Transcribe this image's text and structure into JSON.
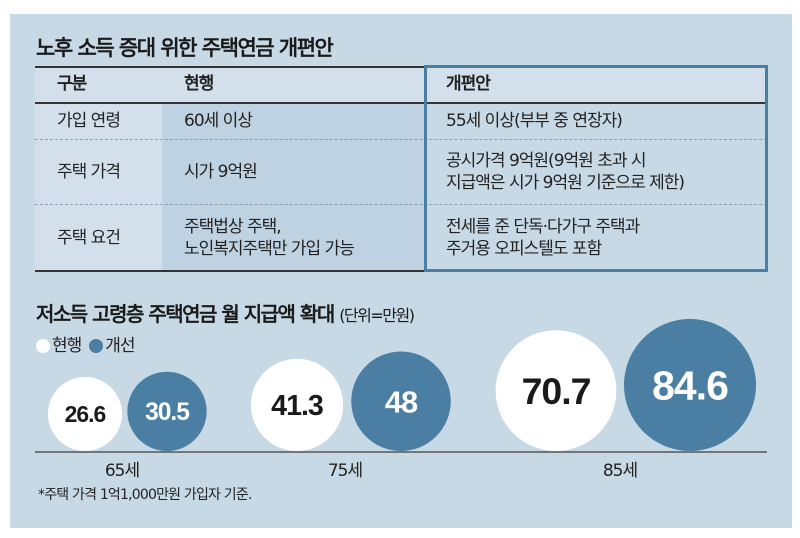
{
  "title": "노후 소득 증대 위한 주택연금 개편안",
  "table": {
    "headers": [
      "구분",
      "현행",
      "개편안"
    ],
    "rows": [
      {
        "category": "가입 연령",
        "current": [
          "60세 이상"
        ],
        "reform": [
          "55세 이상(부부 중 연장자)"
        ]
      },
      {
        "category": "주택 가격",
        "current": [
          "시가 9억원"
        ],
        "reform": [
          "공시가격 9억원(9억원 초과 시",
          "지급액은 시가 9억원 기준으로 제한)"
        ]
      },
      {
        "category": "주택 요건",
        "current": [
          "주택법상 주택,",
          "노인복지주택만 가입 가능"
        ],
        "reform": [
          "전세를 준 단독·다가구 주택과",
          "주거용 오피스텔도 포함"
        ]
      }
    ]
  },
  "chart_data": {
    "type": "bubble",
    "title": "저소득 고령층 주택연금 월 지급액 확대",
    "unit": "(단위=만원)",
    "categories": [
      "65세",
      "75세",
      "85세"
    ],
    "series": [
      {
        "name": "현행",
        "color": "#ffffff",
        "values": [
          26.6,
          41.3,
          70.7
        ],
        "labels": [
          "26.6",
          "41.3",
          "70.7"
        ]
      },
      {
        "name": "개선",
        "color": "#4a7ea3",
        "values": [
          30.5,
          48,
          84.6
        ],
        "labels": [
          "30.5",
          "48",
          "84.6"
        ]
      }
    ],
    "footnote": "*주택 가격 1억1,000만원 가입자 기준."
  }
}
